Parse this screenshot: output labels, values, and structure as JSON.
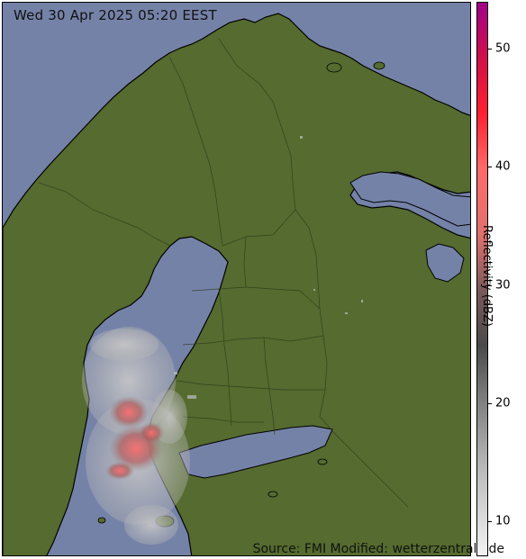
{
  "timestamp": "Wed 30 Apr 2025 05:20 EEST",
  "source": "Source: FMI Modified: wetterzentrale.de",
  "colorbar": {
    "label": "Reflectivity (dBZ)",
    "ticks": [
      10,
      20,
      30,
      40,
      50
    ],
    "range": [
      7,
      54
    ]
  },
  "colors": {
    "sea": "#7582a8",
    "land": "#556b2f",
    "borders": "#3b4a22",
    "coast": "#000000"
  }
}
